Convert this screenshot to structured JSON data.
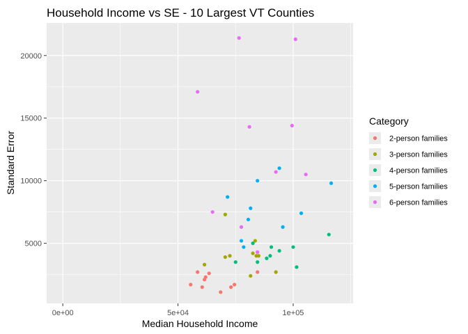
{
  "chart_data": {
    "type": "scatter",
    "title": "Household Income vs SE - 10 Largest VT Counties",
    "xlabel": "Median Household Income",
    "ylabel": "Standard Error",
    "xlim": [
      -7000,
      126000
    ],
    "ylim": [
      200,
      22600
    ],
    "x_ticks": [
      {
        "value": 0,
        "label": "0e+00"
      },
      {
        "value": 50000,
        "label": "5e+04"
      },
      {
        "value": 100000,
        "label": "1e+05"
      }
    ],
    "x_minor": [
      -25000,
      25000,
      75000,
      125000
    ],
    "y_ticks": [
      {
        "value": 5000,
        "label": "5000"
      },
      {
        "value": 10000,
        "label": "10000"
      },
      {
        "value": 15000,
        "label": "15000"
      },
      {
        "value": 20000,
        "label": "20000"
      }
    ],
    "y_minor": [
      2500,
      7500,
      12500,
      17500
    ],
    "grid": true,
    "legend": {
      "title": "Category",
      "placement": "right"
    },
    "series": [
      {
        "name": "2-person families",
        "color": "#F8766D",
        "points": [
          [
            55500,
            1700
          ],
          [
            58500,
            2700
          ],
          [
            60500,
            1500
          ],
          [
            61500,
            2100
          ],
          [
            62000,
            2300
          ],
          [
            63500,
            2600
          ],
          [
            68500,
            1100
          ],
          [
            73000,
            1500
          ],
          [
            74500,
            1700
          ],
          [
            84500,
            2700
          ]
        ]
      },
      {
        "name": "3-person families",
        "color": "#A3A500",
        "points": [
          [
            61500,
            3300
          ],
          [
            70500,
            3900
          ],
          [
            70500,
            7300
          ],
          [
            72500,
            4000
          ],
          [
            81500,
            2400
          ],
          [
            82500,
            4200
          ],
          [
            83500,
            5200
          ],
          [
            84000,
            4000
          ],
          [
            85000,
            4000
          ],
          [
            92500,
            2700
          ]
        ]
      },
      {
        "name": "4-person families",
        "color": "#00BF7D",
        "points": [
          [
            75000,
            3500
          ],
          [
            82500,
            5000
          ],
          [
            84500,
            3500
          ],
          [
            88500,
            3800
          ],
          [
            90000,
            4000
          ],
          [
            90500,
            4700
          ],
          [
            94000,
            4400
          ],
          [
            100000,
            4700
          ],
          [
            101500,
            3100
          ],
          [
            115500,
            5700
          ]
        ]
      },
      {
        "name": "5-person families",
        "color": "#00B0F6",
        "points": [
          [
            71500,
            8700
          ],
          [
            77500,
            5200
          ],
          [
            78500,
            4700
          ],
          [
            80500,
            6900
          ],
          [
            81500,
            7800
          ],
          [
            84500,
            10000
          ],
          [
            94000,
            11000
          ],
          [
            95500,
            6300
          ],
          [
            103500,
            7400
          ],
          [
            116500,
            9800
          ]
        ]
      },
      {
        "name": "6-person families",
        "color": "#E76BF3",
        "points": [
          [
            58500,
            17100
          ],
          [
            65000,
            7500
          ],
          [
            76500,
            21400
          ],
          [
            77500,
            6300
          ],
          [
            81000,
            14300
          ],
          [
            84500,
            4300
          ],
          [
            92500,
            10700
          ],
          [
            99500,
            14400
          ],
          [
            101000,
            21300
          ],
          [
            105500,
            10500
          ]
        ]
      }
    ]
  }
}
